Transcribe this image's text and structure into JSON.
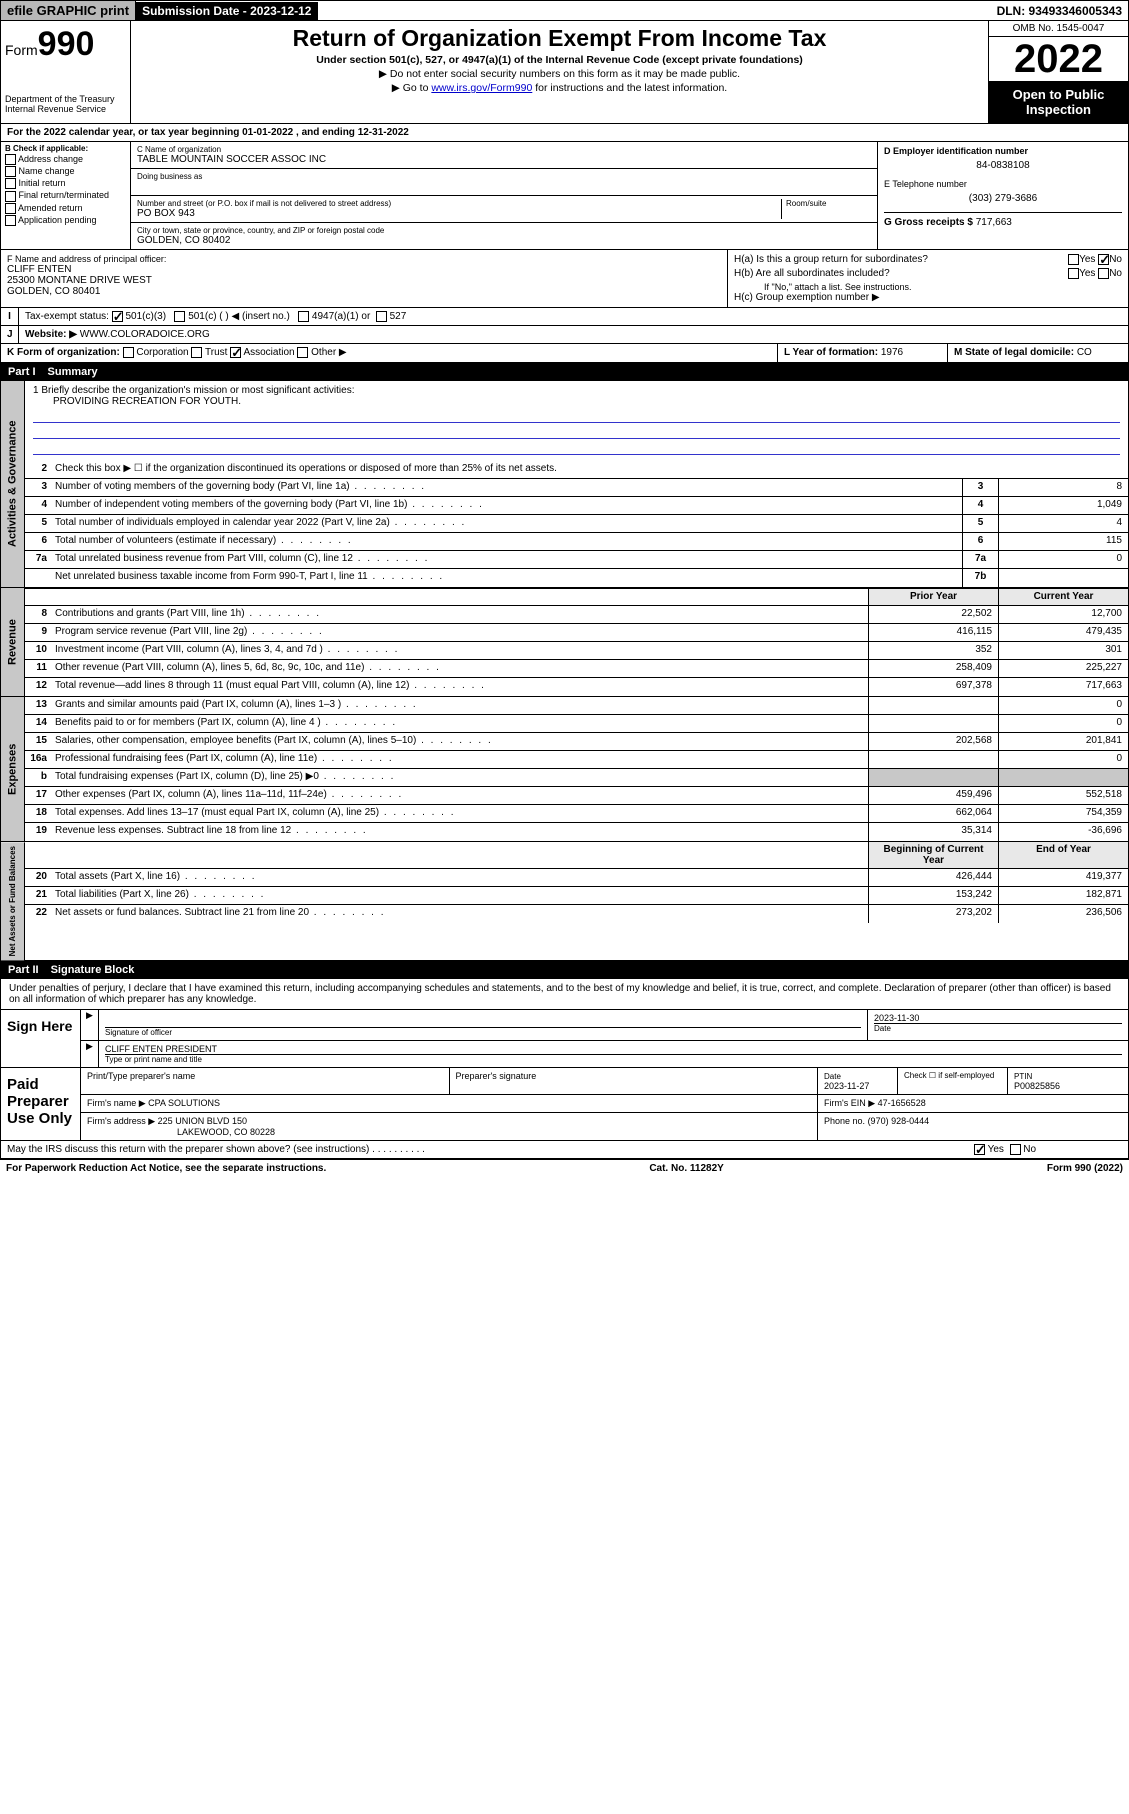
{
  "topbar": {
    "efile": "efile GRAPHIC print",
    "submission_label": "Submission Date - 2023-12-12",
    "dln": "DLN: 93493346005343"
  },
  "header": {
    "form_prefix": "Form",
    "form_number": "990",
    "dept": "Department of the Treasury",
    "irs": "Internal Revenue Service",
    "title": "Return of Organization Exempt From Income Tax",
    "sub1": "Under section 501(c), 527, or 4947(a)(1) of the Internal Revenue Code (except private foundations)",
    "sub2": "▶ Do not enter social security numbers on this form as it may be made public.",
    "sub3a": "▶ Go to ",
    "sub3_link": "www.irs.gov/Form990",
    "sub3b": " for instructions and the latest information.",
    "omb": "OMB No. 1545-0047",
    "year": "2022",
    "inspect": "Open to Public Inspection"
  },
  "a": {
    "line": "For the 2022 calendar year, or tax year beginning 01-01-2022   , and ending 12-31-2022"
  },
  "b": {
    "hdr": "B Check if applicable:",
    "opts": [
      "Address change",
      "Name change",
      "Initial return",
      "Final return/terminated",
      "Amended return",
      "Application pending"
    ]
  },
  "c": {
    "name_lab": "C Name of organization",
    "name": "TABLE MOUNTAIN SOCCER ASSOC INC",
    "dba_lab": "Doing business as",
    "street_lab": "Number and street (or P.O. box if mail is not delivered to street address)",
    "room_lab": "Room/suite",
    "street": "PO BOX 943",
    "city_lab": "City or town, state or province, country, and ZIP or foreign postal code",
    "city": "GOLDEN, CO  80402"
  },
  "d": {
    "lab": "D Employer identification number",
    "val": "84-0838108"
  },
  "e": {
    "lab": "E Telephone number",
    "val": "(303) 279-3686"
  },
  "g": {
    "lab": "G Gross receipts $",
    "val": "717,663"
  },
  "f": {
    "lab": "F  Name and address of principal officer:",
    "name": "CLIFF ENTEN",
    "addr1": "25300 MONTANE DRIVE WEST",
    "addr2": "GOLDEN, CO  80401"
  },
  "h": {
    "a": "H(a)  Is this a group return for subordinates?",
    "b": "H(b)  Are all subordinates included?",
    "b_note": "If \"No,\" attach a list. See instructions.",
    "c": "H(c)  Group exemption number ▶",
    "yes": "Yes",
    "no": "No"
  },
  "i": {
    "lab": "Tax-exempt status:",
    "opts": [
      "501(c)(3)",
      "501(c) (  ) ◀ (insert no.)",
      "4947(a)(1) or",
      "527"
    ]
  },
  "j": {
    "lab": "Website: ▶",
    "val": "WWW.COLORADOICE.ORG"
  },
  "k": {
    "lab": "K Form of organization:",
    "opts": [
      "Corporation",
      "Trust",
      "Association",
      "Other ▶"
    ]
  },
  "l": {
    "lab": "L Year of formation:",
    "val": "1976"
  },
  "m": {
    "lab": "M State of legal domicile:",
    "val": "CO"
  },
  "part1": {
    "title": "Part I",
    "sub": "Summary"
  },
  "mission": {
    "q": "1   Briefly describe the organization's mission or most significant activities:",
    "a": "PROVIDING RECREATION FOR YOUTH."
  },
  "line2": "Check this box ▶ ☐  if the organization discontinued its operations or disposed of more than 25% of its net assets.",
  "gov_rows": [
    {
      "n": "3",
      "t": "Number of voting members of the governing body (Part VI, line 1a)",
      "c": "3",
      "v": "8"
    },
    {
      "n": "4",
      "t": "Number of independent voting members of the governing body (Part VI, line 1b)",
      "c": "4",
      "v": "1,049"
    },
    {
      "n": "5",
      "t": "Total number of individuals employed in calendar year 2022 (Part V, line 2a)",
      "c": "5",
      "v": "4"
    },
    {
      "n": "6",
      "t": "Total number of volunteers (estimate if necessary)",
      "c": "6",
      "v": "115"
    },
    {
      "n": "7a",
      "t": "Total unrelated business revenue from Part VIII, column (C), line 12",
      "c": "7a",
      "v": "0"
    },
    {
      "n": "",
      "t": "Net unrelated business taxable income from Form 990-T, Part I, line 11",
      "c": "7b",
      "v": ""
    }
  ],
  "col_hdrs": {
    "prior": "Prior Year",
    "current": "Current Year"
  },
  "rev_rows": [
    {
      "n": "8",
      "t": "Contributions and grants (Part VIII, line 1h)",
      "p": "22,502",
      "c": "12,700"
    },
    {
      "n": "9",
      "t": "Program service revenue (Part VIII, line 2g)",
      "p": "416,115",
      "c": "479,435"
    },
    {
      "n": "10",
      "t": "Investment income (Part VIII, column (A), lines 3, 4, and 7d )",
      "p": "352",
      "c": "301"
    },
    {
      "n": "11",
      "t": "Other revenue (Part VIII, column (A), lines 5, 6d, 8c, 9c, 10c, and 11e)",
      "p": "258,409",
      "c": "225,227"
    },
    {
      "n": "12",
      "t": "Total revenue—add lines 8 through 11 (must equal Part VIII, column (A), line 12)",
      "p": "697,378",
      "c": "717,663"
    }
  ],
  "exp_rows": [
    {
      "n": "13",
      "t": "Grants and similar amounts paid (Part IX, column (A), lines 1–3 )",
      "p": "",
      "c": "0"
    },
    {
      "n": "14",
      "t": "Benefits paid to or for members (Part IX, column (A), line 4 )",
      "p": "",
      "c": "0"
    },
    {
      "n": "15",
      "t": "Salaries, other compensation, employee benefits (Part IX, column (A), lines 5–10)",
      "p": "202,568",
      "c": "201,841"
    },
    {
      "n": "16a",
      "t": "Professional fundraising fees (Part IX, column (A), line 11e)",
      "p": "",
      "c": "0"
    },
    {
      "n": "b",
      "t": "Total fundraising expenses (Part IX, column (D), line 25) ▶0",
      "p": "",
      "c": "",
      "grey": true
    },
    {
      "n": "17",
      "t": "Other expenses (Part IX, column (A), lines 11a–11d, 11f–24e)",
      "p": "459,496",
      "c": "552,518"
    },
    {
      "n": "18",
      "t": "Total expenses. Add lines 13–17 (must equal Part IX, column (A), line 25)",
      "p": "662,064",
      "c": "754,359"
    },
    {
      "n": "19",
      "t": "Revenue less expenses. Subtract line 18 from line 12",
      "p": "35,314",
      "c": "-36,696"
    }
  ],
  "na_hdrs": {
    "beg": "Beginning of Current Year",
    "end": "End of Year"
  },
  "na_rows": [
    {
      "n": "20",
      "t": "Total assets (Part X, line 16)",
      "p": "426,444",
      "c": "419,377"
    },
    {
      "n": "21",
      "t": "Total liabilities (Part X, line 26)",
      "p": "153,242",
      "c": "182,871"
    },
    {
      "n": "22",
      "t": "Net assets or fund balances. Subtract line 21 from line 20",
      "p": "273,202",
      "c": "236,506"
    }
  ],
  "sidelabels": {
    "gov": "Activities & Governance",
    "rev": "Revenue",
    "exp": "Expenses",
    "na": "Net Assets or Fund Balances"
  },
  "part2": {
    "title": "Part II",
    "sub": "Signature Block"
  },
  "sig": {
    "intro": "Under penalties of perjury, I declare that I have examined this return, including accompanying schedules and statements, and to the best of my knowledge and belief, it is true, correct, and complete. Declaration of preparer (other than officer) is based on all information of which preparer has any knowledge.",
    "here": "Sign Here",
    "sig_of_officer": "Signature of officer",
    "date": "Date",
    "date_val": "2023-11-30",
    "officer": "CLIFF ENTEN  PRESIDENT",
    "officer_lab": "Type or print name and title",
    "paid": "Paid Preparer Use Only",
    "prep_name": "Print/Type preparer's name",
    "prep_sig": "Preparer's signature",
    "prep_date": "2023-11-27",
    "check_self": "Check ☐ if self-employed",
    "ptin_lab": "PTIN",
    "ptin": "P00825856",
    "firm_name_lab": "Firm's name   ▶",
    "firm_name": "CPA SOLUTIONS",
    "firm_ein_lab": "Firm's EIN ▶",
    "firm_ein": "47-1656528",
    "firm_addr_lab": "Firm's address ▶",
    "firm_addr": "225 UNION BLVD 150",
    "firm_city": "LAKEWOOD, CO  80228",
    "phone_lab": "Phone no.",
    "phone": "(970) 928-0444",
    "discuss": "May the IRS discuss this return with the preparer shown above? (see instructions)"
  },
  "footer": {
    "left": "For Paperwork Reduction Act Notice, see the separate instructions.",
    "mid": "Cat. No. 11282Y",
    "right": "Form 990 (2022)"
  }
}
